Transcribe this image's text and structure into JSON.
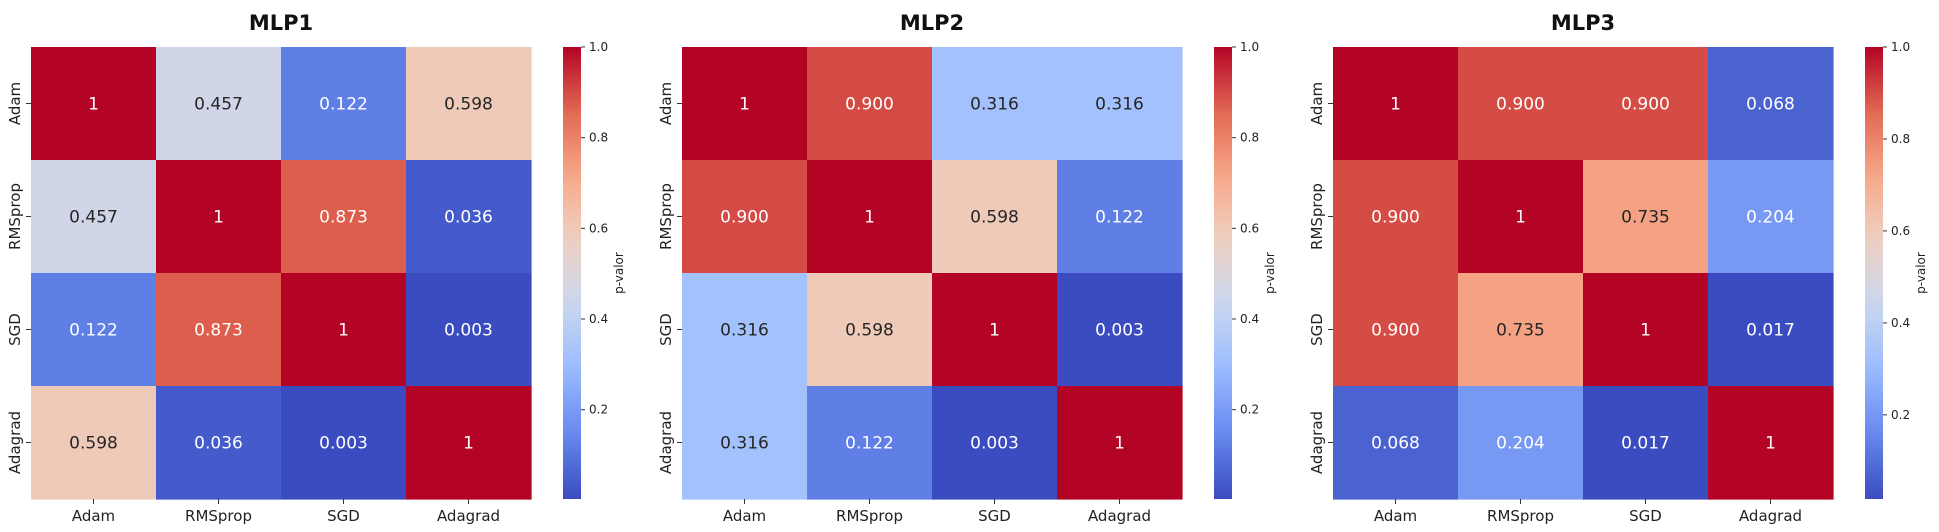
{
  "colorbar": {
    "label": "p-valor",
    "ticks": [
      "0.2",
      "0.4",
      "0.6",
      "0.8",
      "1.0"
    ],
    "tick_values": [
      0.2,
      0.4,
      0.6,
      0.8,
      1.0
    ]
  },
  "colormap": {
    "name": "coolwarm",
    "stops": [
      "#3b4cc0",
      "#6688ee",
      "#9abbff",
      "#c9d7f0",
      "#edd1c2",
      "#f7a889",
      "#e26952",
      "#b40426"
    ]
  },
  "chart_data": [
    {
      "type": "heatmap",
      "title": "MLP1",
      "x_labels": [
        "Adam",
        "RMSprop",
        "SGD",
        "Adagrad"
      ],
      "y_labels": [
        "Adam",
        "RMSprop",
        "SGD",
        "Adagrad"
      ],
      "values": [
        [
          1,
          0.457,
          0.122,
          0.598
        ],
        [
          0.457,
          1,
          0.873,
          0.036
        ],
        [
          0.122,
          0.873,
          1,
          0.003
        ],
        [
          0.598,
          0.036,
          0.003,
          1
        ]
      ],
      "annotations": [
        [
          "1",
          "0.457",
          "0.122",
          "0.598"
        ],
        [
          "0.457",
          "1",
          "0.873",
          "0.036"
        ],
        [
          "0.122",
          "0.873",
          "1",
          "0.003"
        ],
        [
          "0.598",
          "0.036",
          "0.003",
          "1"
        ]
      ],
      "colorbar_range": [
        0.003,
        1.0
      ]
    },
    {
      "type": "heatmap",
      "title": "MLP2",
      "x_labels": [
        "Adam",
        "RMSprop",
        "SGD",
        "Adagrad"
      ],
      "y_labels": [
        "Adam",
        "RMSprop",
        "SGD",
        "Adagrad"
      ],
      "values": [
        [
          1,
          0.9,
          0.316,
          0.316
        ],
        [
          0.9,
          1,
          0.598,
          0.122
        ],
        [
          0.316,
          0.598,
          1,
          0.003
        ],
        [
          0.316,
          0.122,
          0.003,
          1
        ]
      ],
      "annotations": [
        [
          "1",
          "0.900",
          "0.316",
          "0.316"
        ],
        [
          "0.900",
          "1",
          "0.598",
          "0.122"
        ],
        [
          "0.316",
          "0.598",
          "1",
          "0.003"
        ],
        [
          "0.316",
          "0.122",
          "0.003",
          "1"
        ]
      ],
      "colorbar_range": [
        0.003,
        1.0
      ]
    },
    {
      "type": "heatmap",
      "title": "MLP3",
      "x_labels": [
        "Adam",
        "RMSprop",
        "SGD",
        "Adagrad"
      ],
      "y_labels": [
        "Adam",
        "RMSprop",
        "SGD",
        "Adagrad"
      ],
      "values": [
        [
          1,
          0.9,
          0.9,
          0.068
        ],
        [
          0.9,
          1,
          0.735,
          0.204
        ],
        [
          0.9,
          0.735,
          1,
          0.017
        ],
        [
          0.068,
          0.204,
          0.017,
          1
        ]
      ],
      "annotations": [
        [
          "1",
          "0.900",
          "0.900",
          "0.068"
        ],
        [
          "0.900",
          "1",
          "0.735",
          "0.204"
        ],
        [
          "0.900",
          "0.735",
          "1",
          "0.017"
        ],
        [
          "0.068",
          "0.204",
          "0.017",
          "1"
        ]
      ],
      "colorbar_range": [
        0.017,
        1.0
      ]
    }
  ]
}
